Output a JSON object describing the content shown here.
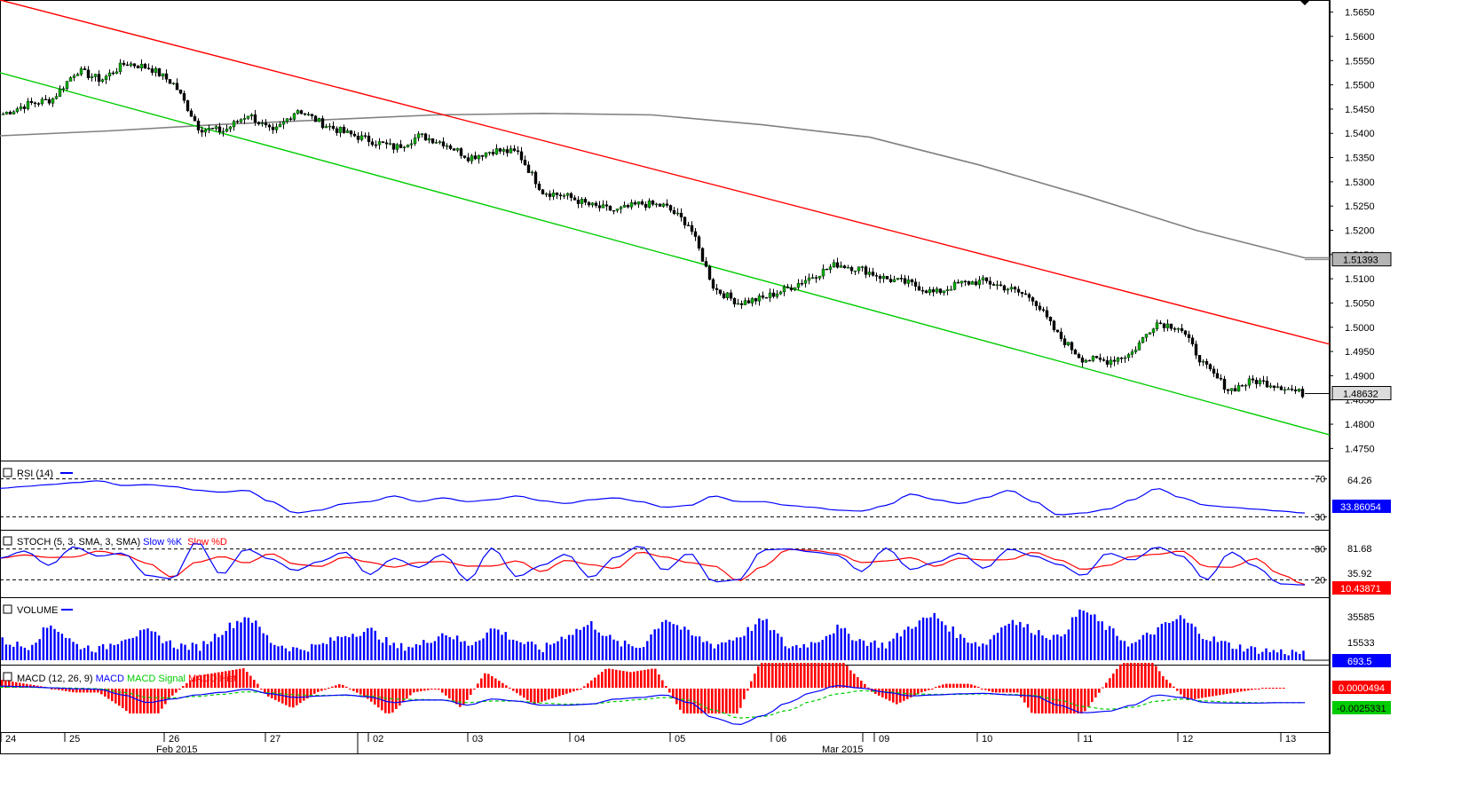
{
  "chart_data": {
    "type": "candlestick",
    "main": {
      "ylim": [
        1.4725,
        1.5675
      ],
      "y_ticks": [
        "1.5650",
        "1.5600",
        "1.5550",
        "1.5500",
        "1.5450",
        "1.5400",
        "1.5350",
        "1.5300",
        "1.5250",
        "1.5200",
        "1.5150",
        "1.5100",
        "1.5050",
        "1.5000",
        "1.4950",
        "1.4900",
        "1.4850",
        "1.4800",
        "1.4750"
      ],
      "ma_label": "1.51393",
      "ma_value": 1.51393,
      "last_label": "1.48632",
      "last_value": 1.48632,
      "colors": {
        "up": "#00b000",
        "down": "#000000",
        "ma": "#808080",
        "upper_channel": "#ff0000",
        "lower_channel": "#00cc00"
      },
      "upper_channel": {
        "start": 1.5675,
        "end": 1.4965
      },
      "lower_channel": {
        "start": 1.5525,
        "end": 1.4778
      },
      "ma": [
        1.5395,
        1.5405,
        1.5418,
        1.5428,
        1.5438,
        1.5441,
        1.5438,
        1.5418,
        1.5392,
        1.5335,
        1.527,
        1.52,
        1.5143
      ],
      "closes": [
        1.544,
        1.546,
        1.547,
        1.553,
        1.551,
        1.5545,
        1.5535,
        1.55,
        1.541,
        1.5405,
        1.544,
        1.54,
        1.545,
        1.542,
        1.54,
        1.5385,
        1.537,
        1.5395,
        1.538,
        1.535,
        1.5365,
        1.536,
        1.528,
        1.527,
        1.525,
        1.524,
        1.5255,
        1.525,
        1.521,
        1.508,
        1.505,
        1.506,
        1.508,
        1.5105,
        1.513,
        1.512,
        1.51,
        1.509,
        1.507,
        1.509,
        1.5095,
        1.508,
        1.506,
        1.4985,
        1.4935,
        1.493,
        1.4945,
        1.501,
        1.5,
        1.492,
        1.487,
        1.489,
        1.488,
        1.4863
      ]
    },
    "rsi": {
      "label": "RSI (14)",
      "levels": [
        "70",
        "30"
      ],
      "current": "64.26",
      "last_label": "33.86054",
      "values": [
        60,
        62,
        64,
        66,
        68,
        63,
        64,
        62,
        58,
        56,
        58,
        46,
        34,
        37,
        44,
        46,
        52,
        46,
        50,
        46,
        48,
        52,
        47,
        44,
        48,
        50,
        46,
        40,
        42,
        52,
        46,
        46,
        42,
        40,
        37,
        36,
        42,
        54,
        48,
        44,
        50,
        58,
        46,
        32,
        34,
        38,
        48,
        60,
        50,
        42,
        40,
        38,
        36,
        34
      ]
    },
    "stoch": {
      "label": "STOCH (5, 3, SMA, 3, SMA)",
      "series_names": [
        "Slow %K",
        "Slow %D"
      ],
      "levels": [
        "80",
        "20"
      ],
      "current": "81.68",
      "current2": "35.92",
      "last_label": "10.43871",
      "values": [
        62,
        76,
        48,
        84,
        66,
        72,
        28,
        22,
        94,
        30,
        80,
        60,
        38,
        56,
        74,
        30,
        62,
        44,
        70,
        18,
        82,
        26,
        48,
        70,
        24,
        64,
        86,
        38,
        72,
        16,
        20,
        78,
        80,
        74,
        68,
        36,
        82,
        40,
        54,
        72,
        42,
        80,
        66,
        50,
        28,
        72,
        58,
        84,
        66,
        20,
        74,
        46,
        12,
        10
      ]
    },
    "volume": {
      "label": "VOLUME",
      "ticks": [
        "35585",
        "15533"
      ],
      "last_label": "693.5",
      "values": [
        18,
        12,
        34,
        14,
        10,
        22,
        26,
        14,
        12,
        28,
        42,
        16,
        10,
        14,
        24,
        28,
        12,
        14,
        26,
        14,
        30,
        18,
        10,
        24,
        34,
        16,
        12,
        40,
        24,
        14,
        22,
        38,
        12,
        16,
        30,
        18,
        14,
        32,
        42,
        22,
        14,
        38,
        28,
        20,
        48,
        30,
        14,
        28,
        40,
        22,
        14,
        10,
        8,
        7
      ]
    },
    "macd": {
      "label": "MACD (12, 26, 9)",
      "series_names": [
        "MACD",
        "MACD Signal",
        "MACD Hist"
      ],
      "current": "0.0000494",
      "last_label": "-0.0025331",
      "macd": [
        0.0007,
        0.0006,
        0.0004,
        0.0002,
        0.0001,
        -0.001,
        -0.0025,
        -0.0018,
        -0.001,
        -0.0005,
        0.0001,
        -0.0008,
        -0.0015,
        -0.0012,
        -0.001,
        -0.0014,
        -0.0025,
        -0.002,
        -0.002,
        -0.003,
        -0.0018,
        -0.0022,
        -0.003,
        -0.003,
        -0.0028,
        -0.0018,
        -0.0015,
        -0.001,
        -0.0025,
        -0.0055,
        -0.0068,
        -0.005,
        -0.0025,
        -0.0005,
        0.0008,
        0.0003,
        -0.0005,
        -0.0012,
        -0.001,
        -0.0008,
        -0.0007,
        -0.001,
        -0.0012,
        -0.003,
        -0.0045,
        -0.0042,
        -0.003,
        -0.001,
        -0.0015,
        -0.0025,
        -0.0026,
        -0.0026,
        -0.0025,
        -0.0025
      ],
      "signal": [
        0.0005,
        0.0005,
        0.0004,
        0.0003,
        0.0002,
        -0.0005,
        -0.0015,
        -0.0016,
        -0.0013,
        -0.0009,
        -0.0004,
        -0.0006,
        -0.001,
        -0.0011,
        -0.0011,
        -0.0012,
        -0.0018,
        -0.0019,
        -0.002,
        -0.0025,
        -0.0022,
        -0.0022,
        -0.0026,
        -0.0028,
        -0.0028,
        -0.0023,
        -0.0019,
        -0.0015,
        -0.002,
        -0.004,
        -0.0055,
        -0.0052,
        -0.004,
        -0.0022,
        -0.0008,
        -0.0002,
        -0.0004,
        -0.0008,
        -0.0009,
        -0.0009,
        -0.0008,
        -0.0009,
        -0.0011,
        -0.002,
        -0.0033,
        -0.0038,
        -0.0034,
        -0.0022,
        -0.0018,
        -0.0022,
        -0.0024,
        -0.0025,
        -0.0025,
        -0.0025
      ]
    },
    "x_axis": {
      "day_labels": [
        "24",
        "25",
        "26",
        "27",
        "02",
        "03",
        "04",
        "05",
        "06",
        "09",
        "10",
        "11",
        "12",
        "13"
      ],
      "month_labels": [
        "Feb 2015",
        "Mar 2015"
      ]
    }
  }
}
